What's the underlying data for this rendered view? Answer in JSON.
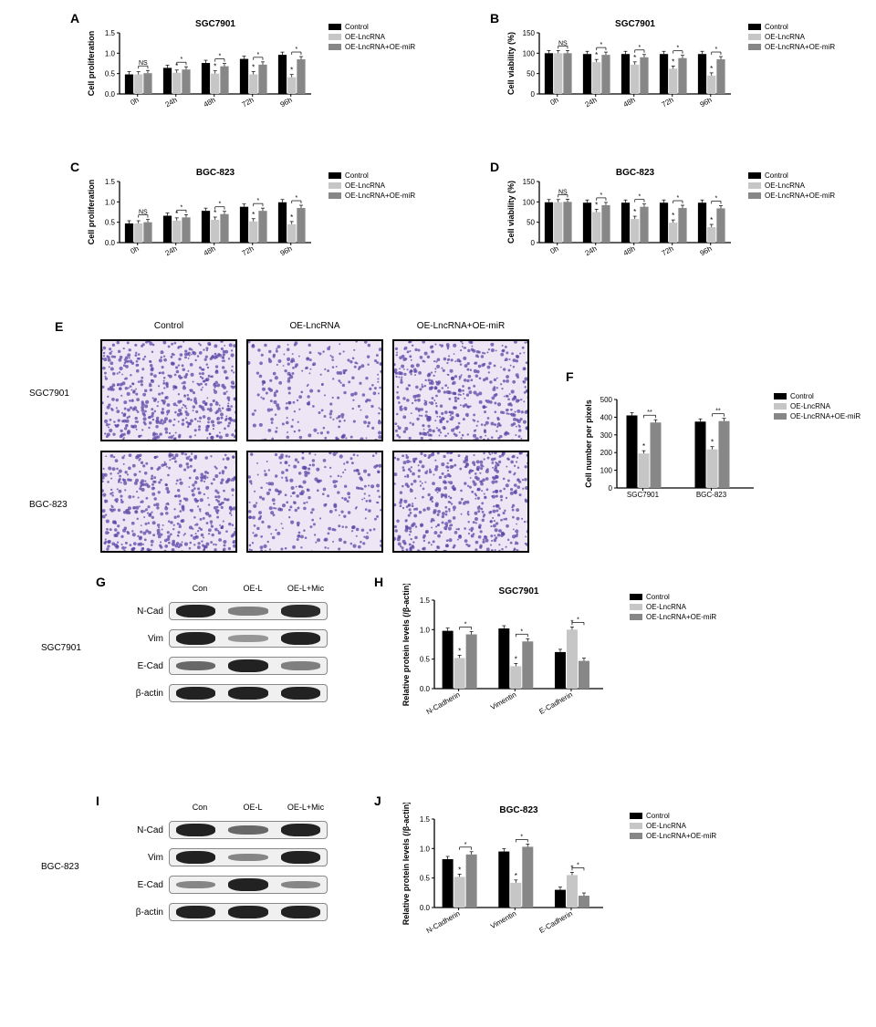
{
  "legend": {
    "control": "Control",
    "oe_lnc": "OE-LncRNA",
    "oe_lnc_mir": "OE-LncRNA+OE-miR",
    "colors": {
      "control": "#000000",
      "oe_lnc": "#c6c6c6",
      "oe_lnc_mir": "#878787"
    }
  },
  "panel_a": {
    "label": "A",
    "title": "SGC7901",
    "ylabel": "Cell proliferation",
    "ylim": [
      0,
      1.5
    ],
    "ytick_step": 0.5,
    "categories": [
      "0h",
      "24h",
      "48h",
      "72h",
      "96h"
    ],
    "series": {
      "control": [
        0.48,
        0.64,
        0.76,
        0.86,
        0.96
      ],
      "oe_lnc": [
        0.48,
        0.52,
        0.5,
        0.48,
        0.41
      ],
      "oe_lnc_mir": [
        0.51,
        0.6,
        0.68,
        0.72,
        0.85
      ]
    },
    "sig": [
      "NS",
      "*",
      "*",
      "*",
      "*"
    ]
  },
  "panel_b": {
    "label": "B",
    "title": "SGC7901",
    "ylabel": "Cell viability (%)",
    "ylim": [
      0,
      150
    ],
    "ytick_step": 50,
    "categories": [
      "0h",
      "24h",
      "48h",
      "72h",
      "96h"
    ],
    "series": {
      "control": [
        100,
        98,
        98,
        98,
        98
      ],
      "oe_lnc": [
        100,
        78,
        72,
        62,
        45
      ],
      "oe_lnc_mir": [
        100,
        96,
        90,
        88,
        85
      ]
    },
    "sig": [
      "NS",
      "*",
      "*",
      "*",
      "*"
    ]
  },
  "panel_c": {
    "label": "C",
    "title": "BGC-823",
    "ylabel": "Cell proliferation",
    "ylim": [
      0,
      1.5
    ],
    "ytick_step": 0.5,
    "categories": [
      "0h",
      "24h",
      "48h",
      "72h",
      "96h"
    ],
    "series": {
      "control": [
        0.47,
        0.66,
        0.78,
        0.88,
        0.99
      ],
      "oe_lnc": [
        0.47,
        0.54,
        0.56,
        0.52,
        0.45
      ],
      "oe_lnc_mir": [
        0.5,
        0.62,
        0.7,
        0.78,
        0.85
      ]
    },
    "sig": [
      "NS",
      "*",
      "*",
      "*",
      "*"
    ]
  },
  "panel_d": {
    "label": "D",
    "title": "BGC-823",
    "ylabel": "Cell viability (%)",
    "ylim": [
      0,
      150
    ],
    "ytick_step": 50,
    "categories": [
      "0h",
      "24h",
      "48h",
      "72h",
      "96h"
    ],
    "series": {
      "control": [
        99,
        98,
        98,
        98,
        98
      ],
      "oe_lnc": [
        99,
        75,
        58,
        49,
        38
      ],
      "oe_lnc_mir": [
        100,
        92,
        88,
        85,
        84
      ]
    },
    "sig": [
      "NS",
      "*",
      "*",
      "*",
      "*"
    ]
  },
  "panel_e": {
    "label": "E",
    "col_labels": [
      "Control",
      "OE-LncRNA",
      "OE-LncRNA+OE-miR"
    ],
    "row_labels": [
      "SGC7901",
      "BGC-823"
    ],
    "densities": [
      [
        0.85,
        0.4,
        0.75
      ],
      [
        0.75,
        0.45,
        0.78
      ]
    ]
  },
  "panel_f": {
    "label": "F",
    "ylabel": "Cell number per pixels",
    "ylim": [
      0,
      500
    ],
    "ytick_step": 100,
    "categories": [
      "SGC7901",
      "BGC-823"
    ],
    "series": {
      "control": [
        410,
        375
      ],
      "oe_lnc": [
        195,
        218
      ],
      "oe_lnc_mir": [
        370,
        378
      ]
    },
    "sig": [
      "**",
      "**"
    ],
    "sig_oe": [
      "**",
      "**"
    ]
  },
  "panel_g": {
    "label": "G",
    "cell_line": "SGC7901",
    "lanes": [
      "Con",
      "OE-L",
      "OE-L+Mic"
    ],
    "proteins": [
      "N-Cad",
      "Vim",
      "E-Cad",
      "β-actin"
    ],
    "intensities": {
      "N-Cad": [
        1.0,
        0.4,
        0.95
      ],
      "Vim": [
        1.0,
        0.25,
        1.0
      ],
      "E-Cad": [
        0.55,
        1.0,
        0.4
      ],
      "β-actin": [
        1.0,
        1.0,
        1.0
      ]
    }
  },
  "panel_h": {
    "label": "H",
    "title": "SGC7901",
    "ylabel": "Relative  protein levels (/β-actin)",
    "ylim": [
      0,
      1.5
    ],
    "ytick_step": 0.5,
    "categories": [
      "N-Cadherin",
      "Vimentin",
      "E-Cadherin"
    ],
    "series": {
      "control": [
        0.98,
        1.02,
        0.62
      ],
      "oe_lnc": [
        0.52,
        0.38,
        1.0
      ],
      "oe_lnc_mir": [
        0.92,
        0.8,
        0.47
      ]
    },
    "sig": [
      "*",
      "*",
      "*"
    ]
  },
  "panel_i": {
    "label": "I",
    "cell_line": "BGC-823",
    "lanes": [
      "Con",
      "OE-L",
      "OE-L+Mic"
    ],
    "proteins": [
      "N-Cad",
      "Vim",
      "E-Cad",
      "β-actin"
    ],
    "intensities": {
      "N-Cad": [
        1.0,
        0.55,
        1.0
      ],
      "Vim": [
        1.0,
        0.35,
        1.0
      ],
      "E-Cad": [
        0.35,
        1.0,
        0.35
      ],
      "β-actin": [
        1.0,
        1.0,
        1.0
      ]
    }
  },
  "panel_j": {
    "label": "J",
    "title": "BGC-823",
    "ylabel": "Relative  protein levels (/β-actin)",
    "ylim": [
      0,
      1.5
    ],
    "ytick_step": 0.5,
    "categories": [
      "N-Cadherin",
      "Vimentin",
      "E-Cadherin"
    ],
    "series": {
      "control": [
        0.82,
        0.95,
        0.3
      ],
      "oe_lnc": [
        0.52,
        0.42,
        0.55
      ],
      "oe_lnc_mir": [
        0.9,
        1.03,
        0.2
      ]
    },
    "sig": [
      "*",
      "*",
      "*"
    ]
  }
}
